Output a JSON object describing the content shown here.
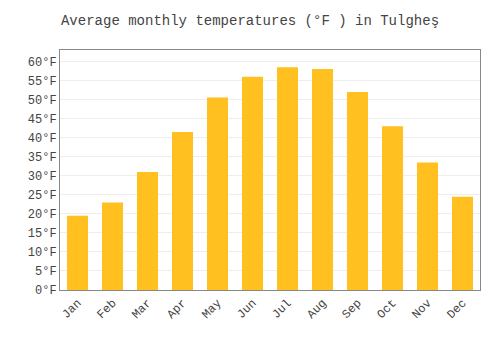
{
  "chart_data": {
    "type": "bar",
    "title": "Average monthly temperatures (°F ) in Tulgheş",
    "categories": [
      "Jan",
      "Feb",
      "Mar",
      "Apr",
      "May",
      "Jun",
      "Jul",
      "Aug",
      "Sep",
      "Oct",
      "Nov",
      "Dec"
    ],
    "values": [
      19.5,
      23.0,
      31.0,
      41.5,
      50.5,
      56.0,
      58.5,
      58.0,
      52.0,
      43.0,
      33.5,
      24.5
    ],
    "color": "#FFC020",
    "ylim": [
      0,
      63
    ],
    "yticks": [
      {
        "value": 0,
        "label": "0°F"
      },
      {
        "value": 5,
        "label": "5°F"
      },
      {
        "value": 10,
        "label": "10°F"
      },
      {
        "value": 15,
        "label": "15°F"
      },
      {
        "value": 20,
        "label": "20°F"
      },
      {
        "value": 25,
        "label": "25°F"
      },
      {
        "value": 30,
        "label": "30°F"
      },
      {
        "value": 35,
        "label": "35°F"
      },
      {
        "value": 40,
        "label": "40°F"
      },
      {
        "value": 45,
        "label": "45°F"
      },
      {
        "value": 50,
        "label": "50°F"
      },
      {
        "value": 55,
        "label": "55°F"
      },
      {
        "value": 60,
        "label": "60°F"
      }
    ],
    "grid": true
  }
}
